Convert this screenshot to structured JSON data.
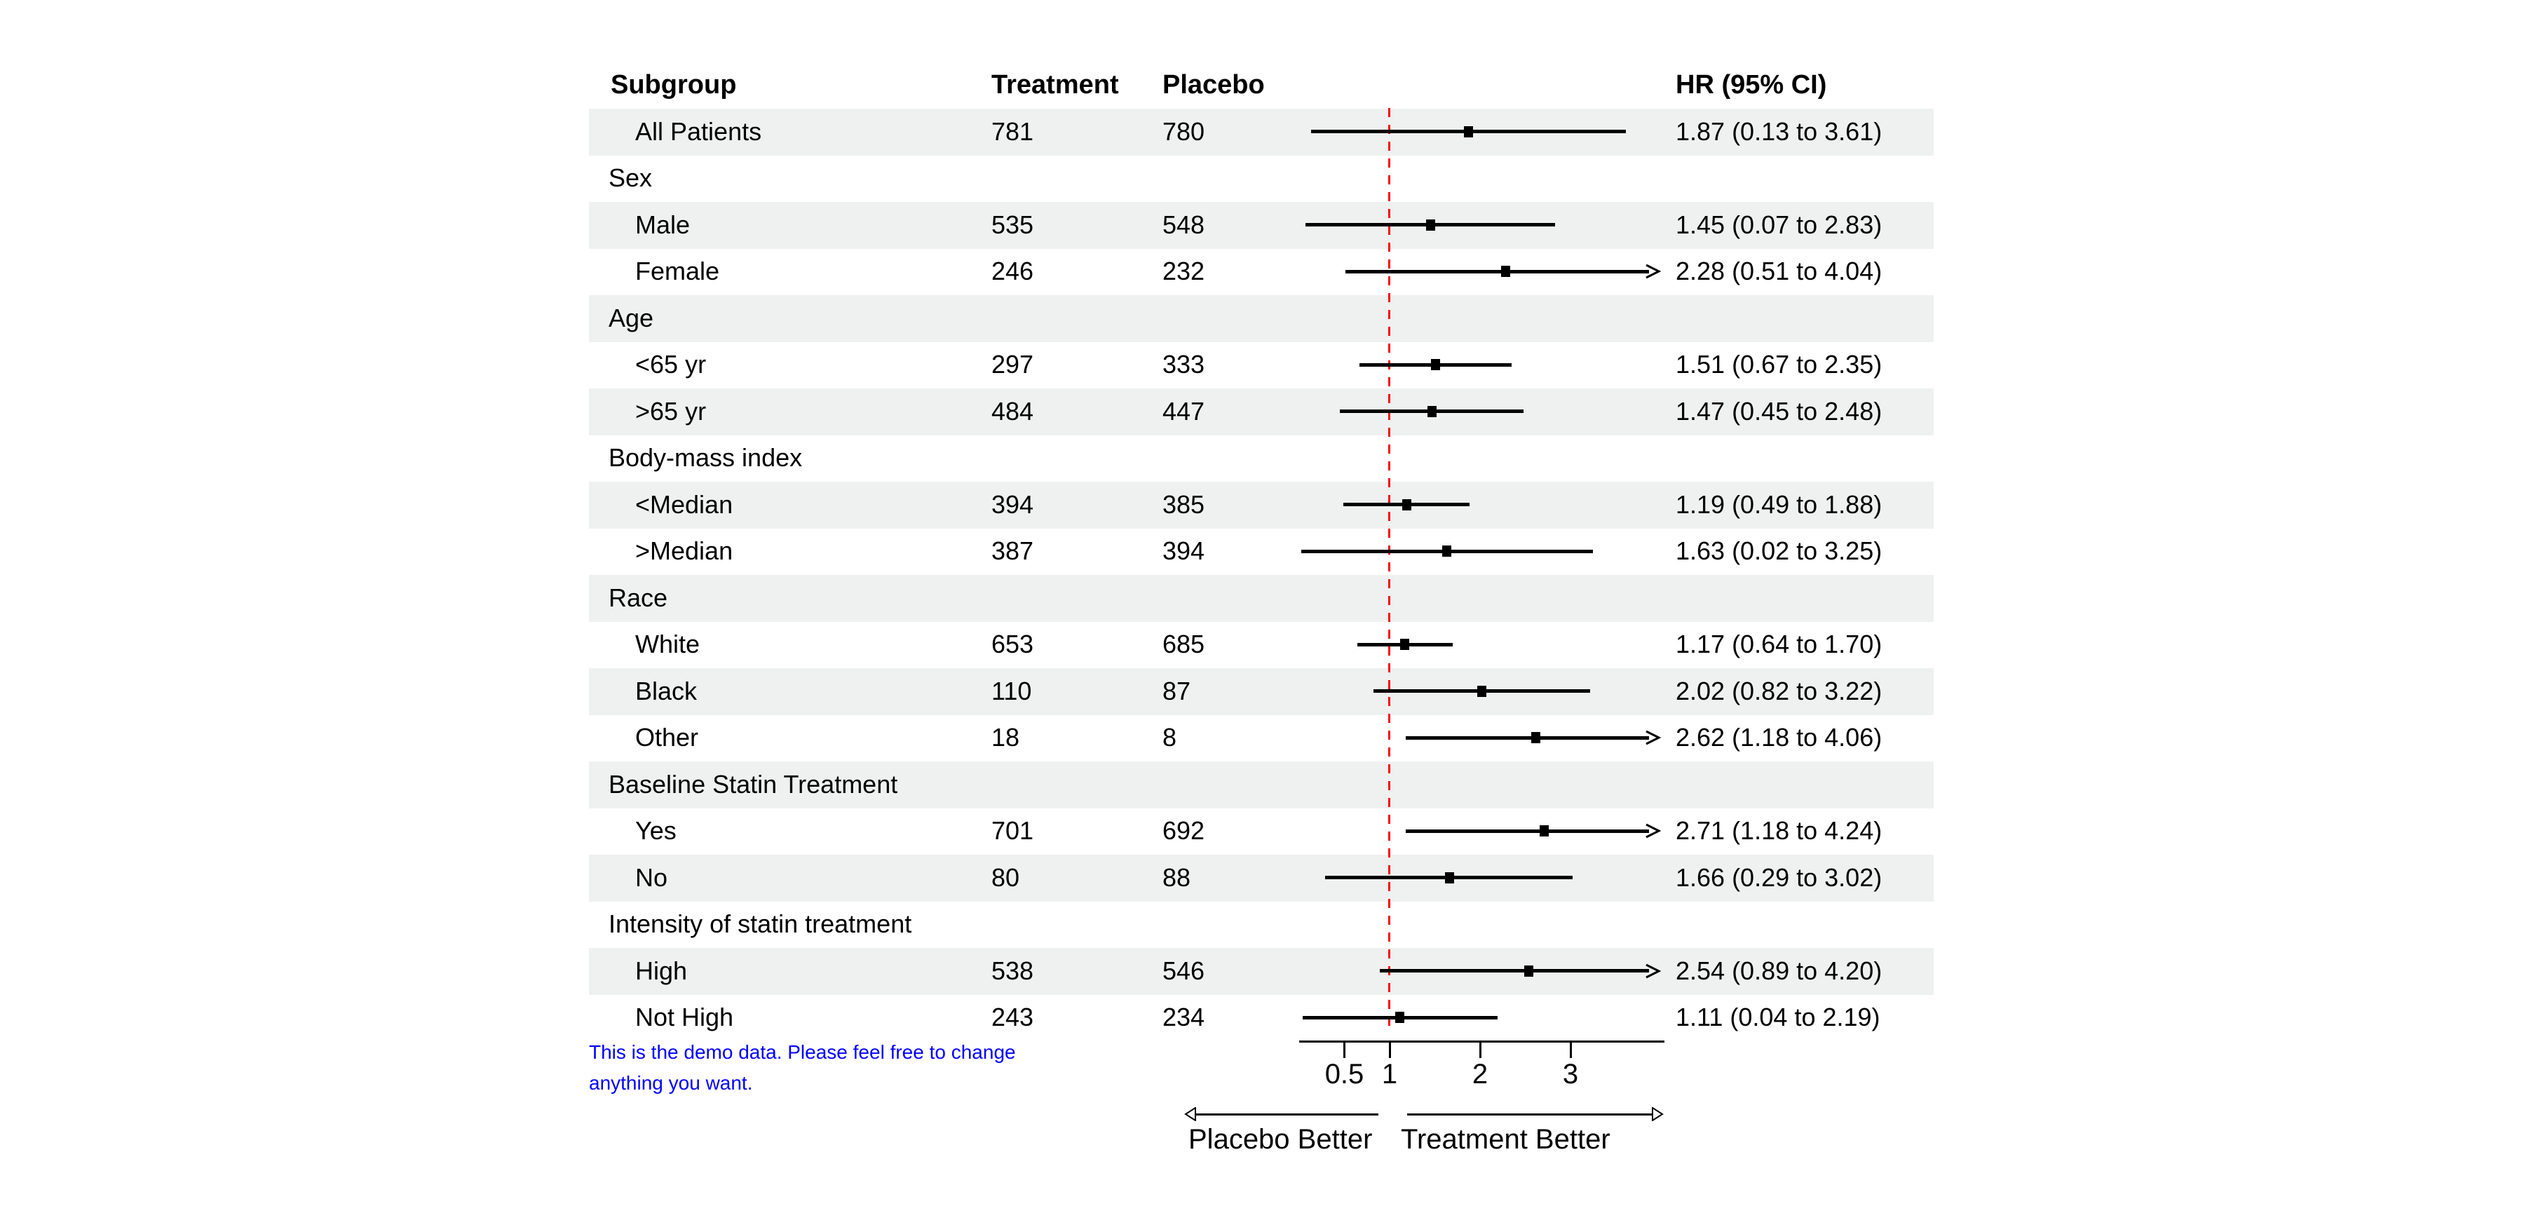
{
  "chart_data": {
    "type": "forest",
    "columns": {
      "subgroup": "Subgroup",
      "treatment": "Treatment",
      "placebo": "Placebo",
      "hr": "HR (95% CI)"
    },
    "axis": {
      "scale": "linear",
      "range": [
        0,
        4.02
      ],
      "ticks": [
        "0.5",
        "1",
        "2",
        "3"
      ],
      "tick_values": [
        0.5,
        1,
        2,
        3
      ],
      "reference_line": 1,
      "left_label": "Placebo Better",
      "right_label": "Treatment Better"
    },
    "rows": [
      {
        "label": "All Patients",
        "type": "item",
        "treatment": "781",
        "placebo": "780",
        "hr": 1.87,
        "ci_low": 0.13,
        "ci_high": 3.61,
        "hr_text": "1.87 (0.13 to 3.61)",
        "arrow": false
      },
      {
        "label": "Sex",
        "type": "section"
      },
      {
        "label": "Male",
        "type": "item",
        "treatment": "535",
        "placebo": "548",
        "hr": 1.45,
        "ci_low": 0.07,
        "ci_high": 2.83,
        "hr_text": "1.45 (0.07 to 2.83)",
        "arrow": false
      },
      {
        "label": "Female",
        "type": "item",
        "treatment": "246",
        "placebo": "232",
        "hr": 2.28,
        "ci_low": 0.51,
        "ci_high": 4.04,
        "hr_text": "2.28 (0.51 to 4.04)",
        "arrow": true
      },
      {
        "label": "Age",
        "type": "section"
      },
      {
        "label": "<65 yr",
        "type": "item",
        "treatment": "297",
        "placebo": "333",
        "hr": 1.51,
        "ci_low": 0.67,
        "ci_high": 2.35,
        "hr_text": "1.51 (0.67 to 2.35)",
        "arrow": false
      },
      {
        "label": ">65 yr",
        "type": "item",
        "treatment": "484",
        "placebo": "447",
        "hr": 1.47,
        "ci_low": 0.45,
        "ci_high": 2.48,
        "hr_text": "1.47 (0.45 to 2.48)",
        "arrow": false
      },
      {
        "label": "Body-mass index",
        "type": "section"
      },
      {
        "label": "<Median",
        "type": "item",
        "treatment": "394",
        "placebo": "385",
        "hr": 1.19,
        "ci_low": 0.49,
        "ci_high": 1.88,
        "hr_text": "1.19 (0.49 to 1.88)",
        "arrow": false
      },
      {
        "label": ">Median",
        "type": "item",
        "treatment": "387",
        "placebo": "394",
        "hr": 1.63,
        "ci_low": 0.02,
        "ci_high": 3.25,
        "hr_text": "1.63 (0.02 to 3.25)",
        "arrow": false
      },
      {
        "label": "Race",
        "type": "section"
      },
      {
        "label": "White",
        "type": "item",
        "treatment": "653",
        "placebo": "685",
        "hr": 1.17,
        "ci_low": 0.64,
        "ci_high": 1.7,
        "hr_text": "1.17 (0.64 to 1.70)",
        "arrow": false
      },
      {
        "label": "Black",
        "type": "item",
        "treatment": "110",
        "placebo": "87",
        "hr": 2.02,
        "ci_low": 0.82,
        "ci_high": 3.22,
        "hr_text": "2.02 (0.82 to 3.22)",
        "arrow": false
      },
      {
        "label": "Other",
        "type": "item",
        "treatment": "18",
        "placebo": "8",
        "hr": 2.62,
        "ci_low": 1.18,
        "ci_high": 4.06,
        "hr_text": "2.62 (1.18 to 4.06)",
        "arrow": true
      },
      {
        "label": "Baseline Statin Treatment",
        "type": "section"
      },
      {
        "label": "Yes",
        "type": "item",
        "treatment": "701",
        "placebo": "692",
        "hr": 2.71,
        "ci_low": 1.18,
        "ci_high": 4.24,
        "hr_text": "2.71 (1.18 to 4.24)",
        "arrow": true
      },
      {
        "label": "No",
        "type": "item",
        "treatment": "80",
        "placebo": "88",
        "hr": 1.66,
        "ci_low": 0.29,
        "ci_high": 3.02,
        "hr_text": "1.66 (0.29 to 3.02)",
        "arrow": false
      },
      {
        "label": "Intensity of statin treatment",
        "type": "section"
      },
      {
        "label": "High",
        "type": "item",
        "treatment": "538",
        "placebo": "546",
        "hr": 2.54,
        "ci_low": 0.89,
        "ci_high": 4.2,
        "hr_text": "2.54 (0.89 to 4.20)",
        "arrow": true
      },
      {
        "label": "Not High",
        "type": "item",
        "treatment": "243",
        "placebo": "234",
        "hr": 1.11,
        "ci_low": 0.04,
        "ci_high": 2.19,
        "hr_text": "1.11 (0.04 to 2.19)",
        "arrow": false
      }
    ]
  },
  "note": {
    "line1": "This is the demo data. Please feel free to change",
    "line2": "anything you want.",
    "color": "#0000ff"
  },
  "colors": {
    "stripe": "#eff1f0",
    "reference_line": "#ff0000",
    "ci": "#000000",
    "text": "#000000"
  }
}
